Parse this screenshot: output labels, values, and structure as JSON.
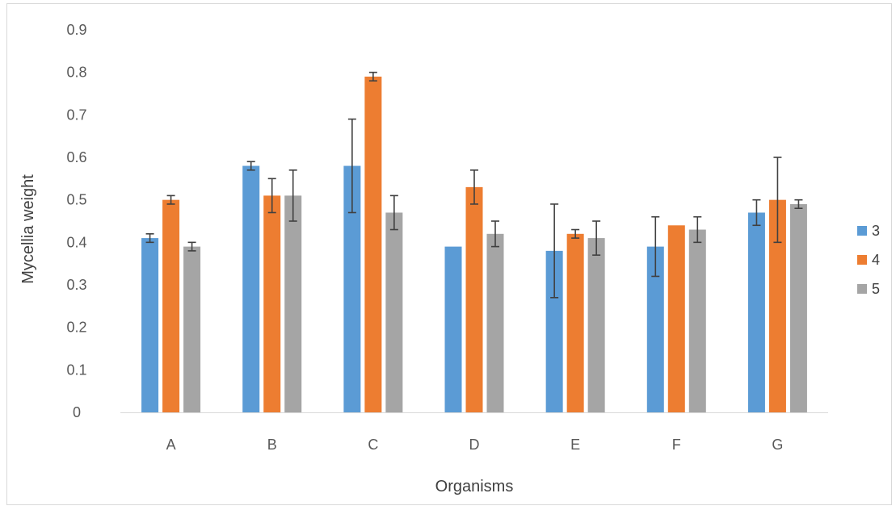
{
  "chart_data": {
    "type": "bar",
    "title": "",
    "xlabel": "Organisms",
    "ylabel": "Mycellia weight",
    "ylim": [
      0,
      0.9
    ],
    "yticks": [
      "0",
      "0.1",
      "0.2",
      "0.3",
      "0.4",
      "0.5",
      "0.6",
      "0.7",
      "0.8",
      "0.9"
    ],
    "grid": false,
    "legend_position": "right",
    "categories": [
      "A",
      "B",
      "C",
      "D",
      "E",
      "F",
      "G"
    ],
    "series": [
      {
        "name": "3",
        "color": "#5b9bd5",
        "values": [
          0.41,
          0.58,
          0.58,
          0.39,
          0.38,
          0.39,
          0.47
        ],
        "error_low": [
          0.4,
          0.57,
          0.47,
          null,
          0.27,
          0.32,
          0.44
        ],
        "error_high": [
          0.42,
          0.59,
          0.69,
          null,
          0.49,
          0.46,
          0.5
        ]
      },
      {
        "name": "4",
        "color": "#ed7d31",
        "values": [
          0.5,
          0.51,
          0.79,
          0.53,
          0.42,
          0.44,
          0.5
        ],
        "error_low": [
          0.49,
          0.47,
          0.78,
          0.49,
          0.41,
          null,
          0.4
        ],
        "error_high": [
          0.51,
          0.55,
          0.8,
          0.57,
          0.43,
          null,
          0.6
        ]
      },
      {
        "name": "5",
        "color": "#a5a5a5",
        "values": [
          0.39,
          0.51,
          0.47,
          0.42,
          0.41,
          0.43,
          0.49
        ],
        "error_low": [
          0.38,
          0.45,
          0.43,
          0.39,
          0.37,
          0.4,
          0.48
        ],
        "error_high": [
          0.4,
          0.57,
          0.51,
          0.45,
          0.45,
          0.46,
          0.5
        ]
      }
    ]
  }
}
